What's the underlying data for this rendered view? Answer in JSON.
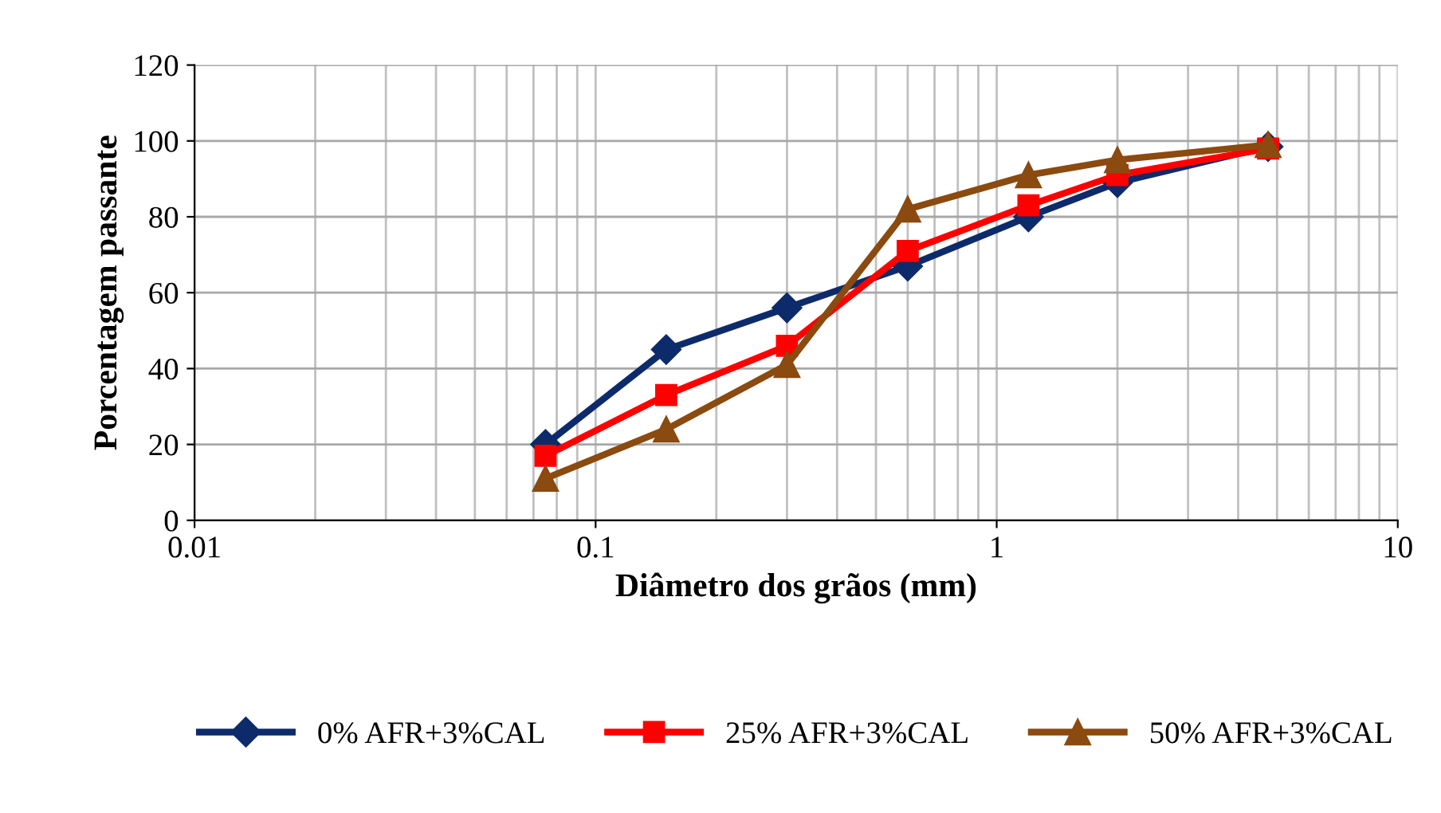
{
  "chart_data": {
    "type": "line",
    "xlabel": "Diâmetro dos grãos (mm)",
    "ylabel": "Porcentagem passante",
    "log": "x",
    "xlim": [
      0.01,
      10
    ],
    "xticks": [
      0.01,
      0.1,
      1,
      10
    ],
    "ylim": [
      0,
      120
    ],
    "yticks": [
      0,
      20,
      40,
      60,
      80,
      100,
      120
    ],
    "grid": true,
    "legend": "bottom",
    "line_style": "solid",
    "x": [
      0.075,
      0.15,
      0.3,
      0.6,
      1.2,
      2.0,
      4.75
    ],
    "series": [
      {
        "name": "0% AFR+3%CAL",
        "color": "#0d2b6b",
        "marker": "diamond",
        "values": [
          20,
          45,
          56,
          67,
          80,
          89,
          98.5
        ]
      },
      {
        "name": "25% AFR+3%CAL",
        "color": "#ff0000",
        "marker": "square",
        "values": [
          17,
          33,
          46,
          71,
          83,
          91,
          98
        ]
      },
      {
        "name": "50% AFR+3%CAL",
        "color": "#8b4a0f",
        "marker": "triangle",
        "values": [
          11,
          24,
          41,
          82,
          91,
          95,
          99
        ]
      }
    ]
  }
}
